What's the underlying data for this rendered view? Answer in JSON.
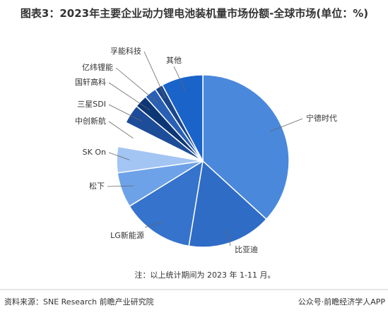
{
  "chart_data": {
    "type": "pie",
    "title": "图表3：2023年主要企业动力锂电池装机量市场份额-全球市场(单位：%)",
    "categories": [
      "宁德时代",
      "比亚迪",
      "LG新能源",
      "松下",
      "SK On",
      "中创新航",
      "三星SDI",
      "国轩高科",
      "亿纬锂能",
      "孚能科技",
      "其他"
    ],
    "values": [
      36.8,
      15.8,
      13.6,
      6.6,
      4.9,
      4.7,
      3.6,
      2.4,
      2.3,
      1.5,
      7.8
    ],
    "colors": [
      "#4a88dc",
      "#2f6cc6",
      "#3573cc",
      "#6ea2e8",
      "#a3c5f3",
      "#ffffff",
      "#1d4c99",
      "#0d3675",
      "#2960b6",
      "#1a468c",
      "#1a63c9"
    ],
    "note": "注：以上统计期间为 2023 年 1-11 月。",
    "source": "资料来源：SNE Research 前瞻产业研究院",
    "source_right": "公众号·前瞻经济学人APP"
  }
}
